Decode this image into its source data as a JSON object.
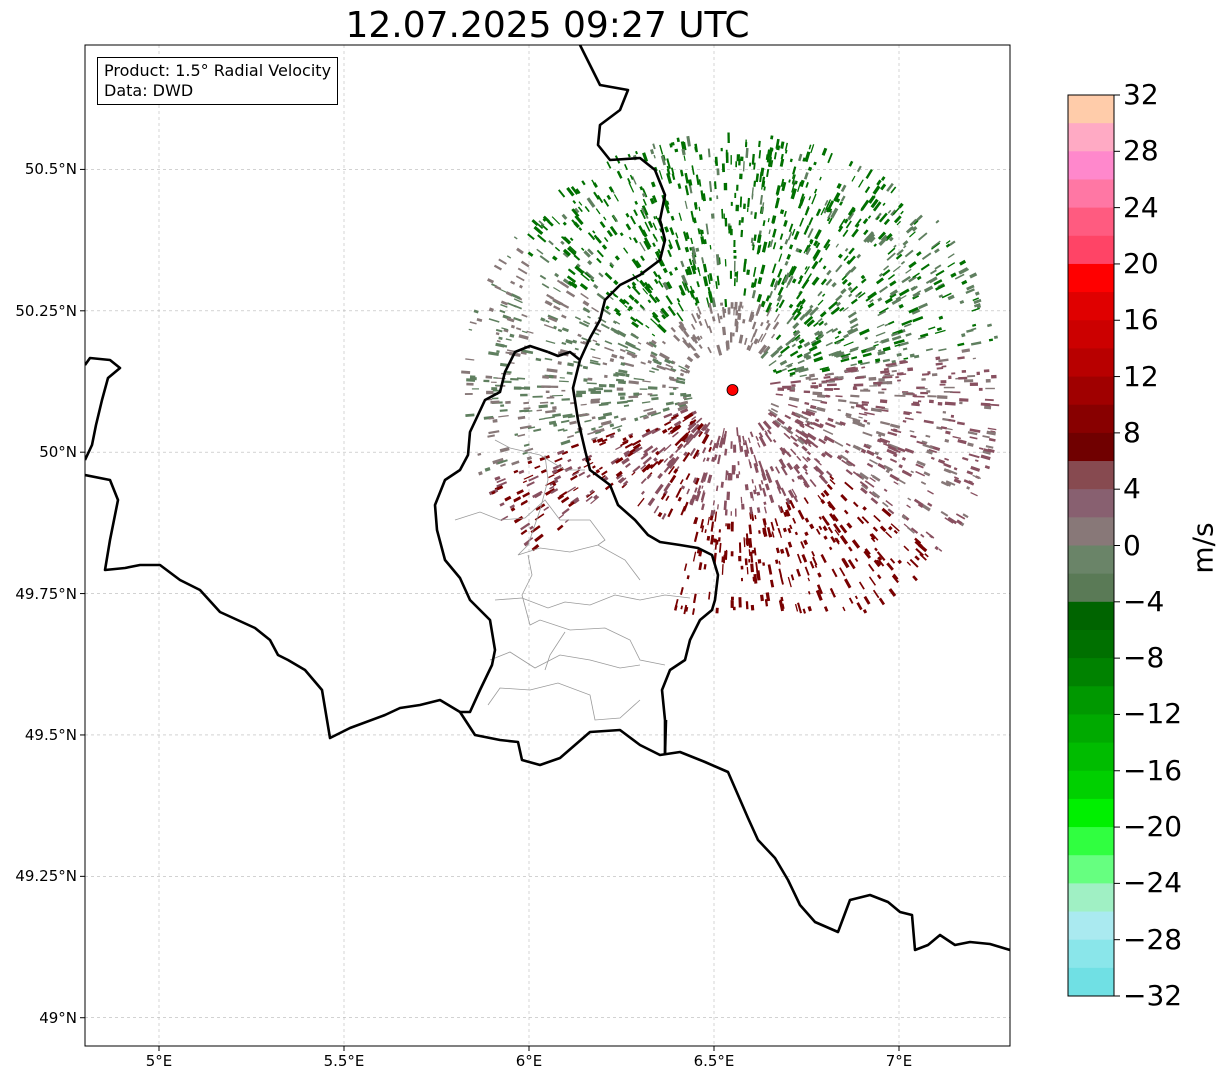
{
  "title": "12.07.2025 09:27 UTC",
  "info": {
    "product": "Product: 1.5° Radial Velocity",
    "data": "Data: DWD"
  },
  "map": {
    "lon_range": [
      4.8,
      7.3
    ],
    "lat_range": [
      48.95,
      50.72
    ],
    "grid": true,
    "radar_site": {
      "lon": 6.55,
      "lat": 50.11,
      "color": "#ff0000"
    },
    "lat_ticks": [
      {
        "value": 50.5,
        "label": "50.5°N"
      },
      {
        "value": 50.25,
        "label": "50.25°N"
      },
      {
        "value": 50.0,
        "label": "50°N"
      },
      {
        "value": 49.75,
        "label": "49.75°N"
      },
      {
        "value": 49.5,
        "label": "49.5°N"
      },
      {
        "value": 49.25,
        "label": "49.25°N"
      },
      {
        "value": 49.0,
        "label": "49°N"
      }
    ],
    "lon_ticks": [
      {
        "value": 5.0,
        "label": "5°E"
      },
      {
        "value": 5.5,
        "label": "5.5°E"
      },
      {
        "value": 6.0,
        "label": "6°E"
      },
      {
        "value": 6.5,
        "label": "6.5°E"
      },
      {
        "value": 7.0,
        "label": "7°E"
      }
    ],
    "echo_colors": {
      "strong_inbound": "#007000",
      "weak_inbound": "#5f7f5f",
      "near_zero": "#877878",
      "weak_outbound": "#885060",
      "strong_outbound": "#780000"
    }
  },
  "colorbar": {
    "unit": "m/s",
    "min": -32,
    "max": 32,
    "ticks": [
      32,
      28,
      24,
      20,
      16,
      12,
      8,
      4,
      0,
      -4,
      -8,
      -12,
      -16,
      -20,
      -24,
      -28,
      -32
    ],
    "tick_labels": [
      "32",
      "28",
      "24",
      "20",
      "16",
      "12",
      "8",
      "4",
      "0",
      "−4",
      "−8",
      "−12",
      "−16",
      "−20",
      "−24",
      "−28",
      "−32"
    ],
    "colors_top_to_bottom": [
      "#ffccaa",
      "#ffaac4",
      "#ff88cc",
      "#ff77a4",
      "#ff5b80",
      "#ff4466",
      "#ff0000",
      "#e00000",
      "#cc0000",
      "#b80000",
      "#a00000",
      "#880000",
      "#700000",
      "#874a50",
      "#886070",
      "#887878",
      "#6a8468",
      "#5a7a56",
      "#006400",
      "#007000",
      "#008200",
      "#009800",
      "#00aa00",
      "#00bc00",
      "#00d000",
      "#00f000",
      "#30ff40",
      "#66ff80",
      "#a0f0c4",
      "#aaeaf0",
      "#8ae6ea",
      "#70e0e4"
    ]
  }
}
